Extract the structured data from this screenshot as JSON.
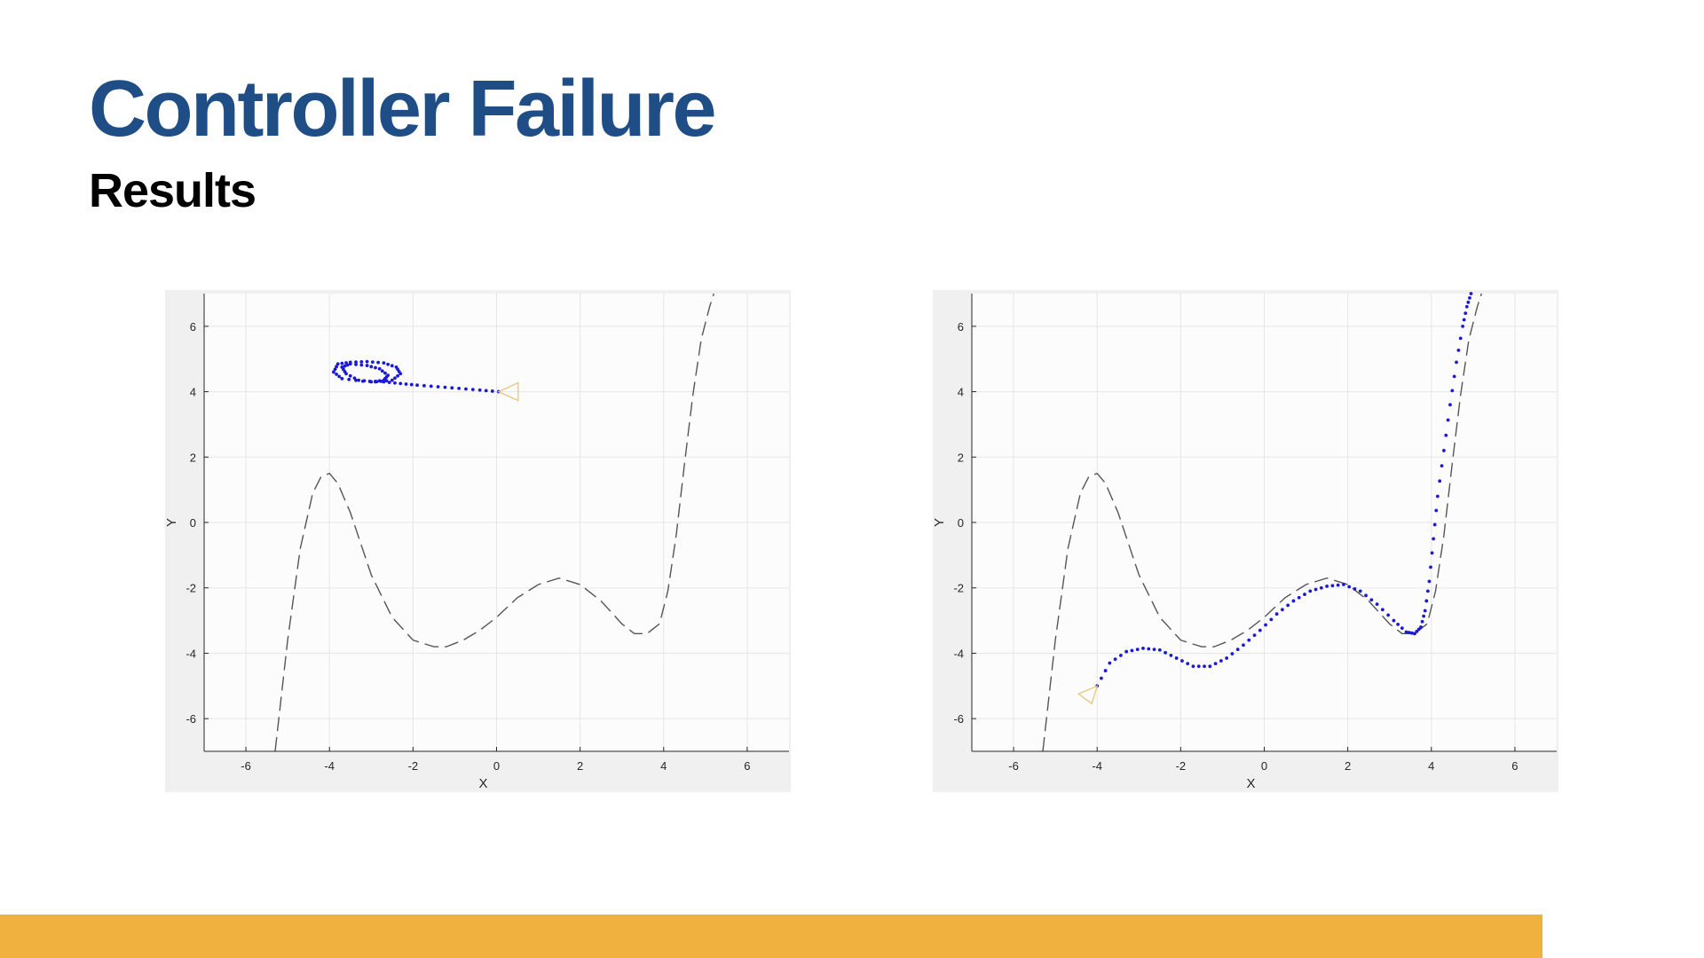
{
  "slide": {
    "title": "Controller Failure",
    "subtitle": "Results"
  },
  "colors": {
    "title": "#1f4e86",
    "accent_bar": "#f0b13f",
    "trajectory": "#1a1ad6",
    "reference_path": "#555555",
    "vehicle_marker": "#e8c47a",
    "plot_frame_bg": "#f0f0f0",
    "plot_area_bg": "#fcfcfc",
    "grid": "#e6e6e6"
  },
  "chart_data": [
    {
      "type": "line",
      "xlabel": "X",
      "ylabel": "Y",
      "xlim": [
        -7,
        7
      ],
      "ylim": [
        -7,
        7
      ],
      "xticks": [
        -6,
        -4,
        -2,
        0,
        2,
        4,
        6
      ],
      "yticks": [
        -6,
        -4,
        -2,
        0,
        2,
        4,
        6
      ],
      "grid": true,
      "legend": "none",
      "reference_path": {
        "style": "dashed",
        "x": [
          -5.3,
          -5.0,
          -4.7,
          -4.4,
          -4.2,
          -4.0,
          -3.8,
          -3.5,
          -3.0,
          -2.5,
          -2.0,
          -1.5,
          -1.2,
          -0.8,
          -0.4,
          0.0,
          0.5,
          1.0,
          1.5,
          2.0,
          2.5,
          3.0,
          3.3,
          3.6,
          3.9,
          4.1,
          4.3,
          4.5,
          4.7,
          4.9,
          5.1,
          5.2
        ],
        "y": [
          -7.0,
          -3.6,
          -0.8,
          0.9,
          1.4,
          1.5,
          1.2,
          0.3,
          -1.6,
          -2.9,
          -3.6,
          -3.8,
          -3.8,
          -3.6,
          -3.3,
          -2.9,
          -2.3,
          -1.9,
          -1.7,
          -1.9,
          -2.4,
          -3.1,
          -3.4,
          -3.4,
          -3.1,
          -2.1,
          -0.4,
          1.8,
          3.9,
          5.6,
          6.6,
          7.0
        ]
      },
      "trajectory": {
        "style": "dotted",
        "x": [
          0.05,
          -0.4,
          -0.9,
          -1.4,
          -1.9,
          -2.3,
          -2.7,
          -3.2,
          -3.7,
          -3.9,
          -3.8,
          -3.5,
          -3.1,
          -2.7,
          -2.4,
          -2.3,
          -2.5,
          -2.9,
          -3.3,
          -3.6,
          -3.7,
          -3.5,
          -3.1,
          -2.8,
          -2.6,
          -2.7,
          -3.0
        ],
        "y": [
          4.0,
          4.05,
          4.1,
          4.15,
          4.2,
          4.25,
          4.3,
          4.32,
          4.4,
          4.6,
          4.85,
          4.9,
          4.92,
          4.88,
          4.75,
          4.55,
          4.35,
          4.3,
          4.35,
          4.55,
          4.75,
          4.85,
          4.8,
          4.7,
          4.5,
          4.35,
          4.3
        ]
      },
      "vehicle": {
        "x": 0.05,
        "y": 4.0,
        "heading": "left"
      }
    },
    {
      "type": "line",
      "xlabel": "X",
      "ylabel": "Y",
      "xlim": [
        -7,
        7
      ],
      "ylim": [
        -7,
        7
      ],
      "xticks": [
        -6,
        -4,
        -2,
        0,
        2,
        4,
        6
      ],
      "yticks": [
        -6,
        -4,
        -2,
        0,
        2,
        4,
        6
      ],
      "grid": true,
      "legend": "none",
      "reference_path": {
        "style": "dashed",
        "x": [
          -5.3,
          -5.0,
          -4.7,
          -4.4,
          -4.2,
          -4.0,
          -3.8,
          -3.5,
          -3.0,
          -2.5,
          -2.0,
          -1.5,
          -1.2,
          -0.8,
          -0.4,
          0.0,
          0.5,
          1.0,
          1.5,
          2.0,
          2.5,
          3.0,
          3.3,
          3.6,
          3.9,
          4.1,
          4.3,
          4.5,
          4.7,
          4.9,
          5.1,
          5.2
        ],
        "y": [
          -7.0,
          -3.6,
          -0.8,
          0.9,
          1.4,
          1.5,
          1.2,
          0.3,
          -1.6,
          -2.9,
          -3.6,
          -3.8,
          -3.8,
          -3.6,
          -3.3,
          -2.9,
          -2.3,
          -1.9,
          -1.7,
          -1.9,
          -2.4,
          -3.1,
          -3.4,
          -3.4,
          -3.1,
          -2.1,
          -0.4,
          1.8,
          3.9,
          5.6,
          6.6,
          7.0
        ]
      },
      "trajectory": {
        "style": "dotted",
        "x": [
          -4.0,
          -3.7,
          -3.3,
          -2.9,
          -2.5,
          -2.1,
          -1.7,
          -1.3,
          -0.9,
          -0.5,
          -0.1,
          0.3,
          0.7,
          1.1,
          1.5,
          1.9,
          2.3,
          2.7,
          3.1,
          3.4,
          3.6,
          3.75,
          3.85,
          3.95,
          4.05,
          4.15,
          4.3,
          4.45,
          4.6,
          4.75,
          4.85,
          4.95
        ],
        "y": [
          -5.0,
          -4.3,
          -3.95,
          -3.85,
          -3.9,
          -4.15,
          -4.4,
          -4.4,
          -4.15,
          -3.75,
          -3.3,
          -2.8,
          -2.4,
          -2.1,
          -1.95,
          -1.9,
          -2.1,
          -2.5,
          -3.0,
          -3.35,
          -3.4,
          -3.2,
          -2.7,
          -1.8,
          -0.5,
          0.8,
          2.2,
          3.6,
          4.9,
          6.0,
          6.6,
          7.0
        ]
      },
      "vehicle": {
        "x": -4.0,
        "y": -5.0,
        "heading": "down-left"
      }
    }
  ]
}
